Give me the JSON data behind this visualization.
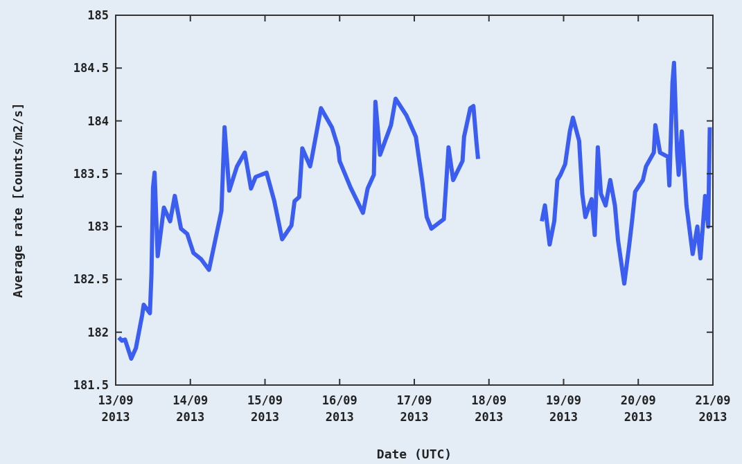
{
  "chart_data": {
    "type": "line",
    "xlabel": "Date (UTC)",
    "ylabel": "Average rate [Counts/m2/s]",
    "xlim": [
      "2013-09-13",
      "2013-09-21"
    ],
    "ylim": [
      181.5,
      185
    ],
    "xticks": [
      {
        "value": "2013-09-13",
        "label": "13/09\n2013"
      },
      {
        "value": "2013-09-14",
        "label": "14/09\n2013"
      },
      {
        "value": "2013-09-15",
        "label": "15/09\n2013"
      },
      {
        "value": "2013-09-16",
        "label": "16/09\n2013"
      },
      {
        "value": "2013-09-17",
        "label": "17/09\n2013"
      },
      {
        "value": "2013-09-18",
        "label": "18/09\n2013"
      },
      {
        "value": "2013-09-19",
        "label": "19/09\n2013"
      },
      {
        "value": "2013-09-20",
        "label": "20/09\n2013"
      },
      {
        "value": "2013-09-21",
        "label": "21/09\n2013"
      }
    ],
    "yticks": [
      181.5,
      182,
      182.5,
      183,
      183.5,
      184,
      184.5,
      185
    ],
    "series": [
      {
        "color": "#3b5ef0",
        "x": [
          "2013-09-13T01:00",
          "2013-09-13T02:00",
          "2013-09-13T03:00",
          "2013-09-13T05:00",
          "2013-09-13T06:30",
          "2013-09-13T08:30",
          "2013-09-13T09:00",
          "2013-09-13T11:00",
          "2013-09-13T11:30",
          "2013-09-13T12:00",
          "2013-09-13T12:30",
          "2013-09-13T13:30",
          "2013-09-13T15:30",
          "2013-09-13T17:30",
          "2013-09-13T19:00",
          "2013-09-13T21:00",
          "2013-09-13T23:00",
          "2013-09-14T01:00",
          "2013-09-14T03:30",
          "2013-09-14T06:00",
          "2013-09-14T10:00",
          "2013-09-14T11:00",
          "2013-09-14T12:30",
          "2013-09-14T15:00",
          "2013-09-14T17:30",
          "2013-09-14T19:30",
          "2013-09-14T21:00",
          "2013-09-15T00:30",
          "2013-09-15T03:00",
          "2013-09-15T05:30",
          "2013-09-15T08:30",
          "2013-09-15T09:30",
          "2013-09-15T11:00",
          "2013-09-15T12:00",
          "2013-09-15T14:30",
          "2013-09-15T15:00",
          "2013-09-15T18:00",
          "2013-09-15T21:30",
          "2013-09-15T23:30",
          "2013-09-16T00:00",
          "2013-09-16T03:30",
          "2013-09-16T07:30",
          "2013-09-16T09:00",
          "2013-09-16T11:00",
          "2013-09-16T11:30",
          "2013-09-16T13:00",
          "2013-09-16T16:30",
          "2013-09-16T18:00",
          "2013-09-16T21:30",
          "2013-09-17T00:30",
          "2013-09-17T02:30",
          "2013-09-17T04:00",
          "2013-09-17T05:30",
          "2013-09-17T09:30",
          "2013-09-17T11:00",
          "2013-09-17T12:30",
          "2013-09-17T15:30",
          "2013-09-17T16:00",
          "2013-09-17T18:00",
          "2013-09-17T19:00",
          "2013-09-17T20:00",
          "2013-09-17T20:30",
          "2013-09-18T06:00",
          "2013-09-18T17:00",
          "2013-09-18T18:00",
          "2013-09-18T19:30",
          "2013-09-18T21:00",
          "2013-09-18T22:00",
          "2013-09-18T23:00",
          "2013-09-19T00:30",
          "2013-09-19T02:00",
          "2013-09-19T03:00",
          "2013-09-19T05:00",
          "2013-09-19T06:00",
          "2013-09-19T07:00",
          "2013-09-19T09:00",
          "2013-09-19T10:00",
          "2013-09-19T11:00",
          "2013-09-19T12:00",
          "2013-09-19T13:30",
          "2013-09-19T15:00",
          "2013-09-19T16:30",
          "2013-09-19T17:30",
          "2013-09-19T19:30",
          "2013-09-19T21:00",
          "2013-09-19T22:00",
          "2013-09-19T23:00",
          "2013-09-20T01:30",
          "2013-09-20T02:30",
          "2013-09-20T05:00",
          "2013-09-20T05:30",
          "2013-09-20T07:00",
          "2013-09-20T09:30",
          "2013-09-20T10:00",
          "2013-09-20T11:00",
          "2013-09-20T11:30",
          "2013-09-20T12:30",
          "2013-09-20T13:00",
          "2013-09-20T14:00",
          "2013-09-20T15:30",
          "2013-09-20T17:30",
          "2013-09-20T19:00",
          "2013-09-20T20:00",
          "2013-09-20T21:30",
          "2013-09-20T22:30",
          "2013-09-20T23:00"
        ],
        "values": [
          181.95,
          181.92,
          181.93,
          181.75,
          181.85,
          182.16,
          182.26,
          182.18,
          182.55,
          183.37,
          183.51,
          182.72,
          183.18,
          183.05,
          183.29,
          182.98,
          182.93,
          182.75,
          182.69,
          182.59,
          183.15,
          183.94,
          183.34,
          183.57,
          183.7,
          183.36,
          183.47,
          183.51,
          183.24,
          182.88,
          183.01,
          183.24,
          183.28,
          183.74,
          183.57,
          183.64,
          184.12,
          183.94,
          183.75,
          183.62,
          183.37,
          183.13,
          183.36,
          183.49,
          184.18,
          183.68,
          183.96,
          184.21,
          184.05,
          183.85,
          183.44,
          183.09,
          182.98,
          183.07,
          183.75,
          183.44,
          183.62,
          183.85,
          184.12,
          184.14,
          183.79,
          183.64,
          null,
          183.05,
          183.2,
          182.83,
          183.05,
          183.44,
          183.49,
          183.59,
          183.9,
          184.03,
          183.81,
          183.31,
          183.09,
          183.26,
          182.92,
          183.75,
          183.31,
          183.2,
          183.44,
          183.2,
          182.87,
          182.46,
          182.8,
          183.05,
          183.33,
          183.44,
          183.57,
          183.7,
          183.96,
          183.7,
          183.66,
          183.39,
          184.36,
          184.55,
          183.7,
          183.49,
          183.9,
          183.2,
          182.74,
          183.0,
          182.7,
          183.29,
          183.0,
          183.94
        ]
      }
    ]
  }
}
